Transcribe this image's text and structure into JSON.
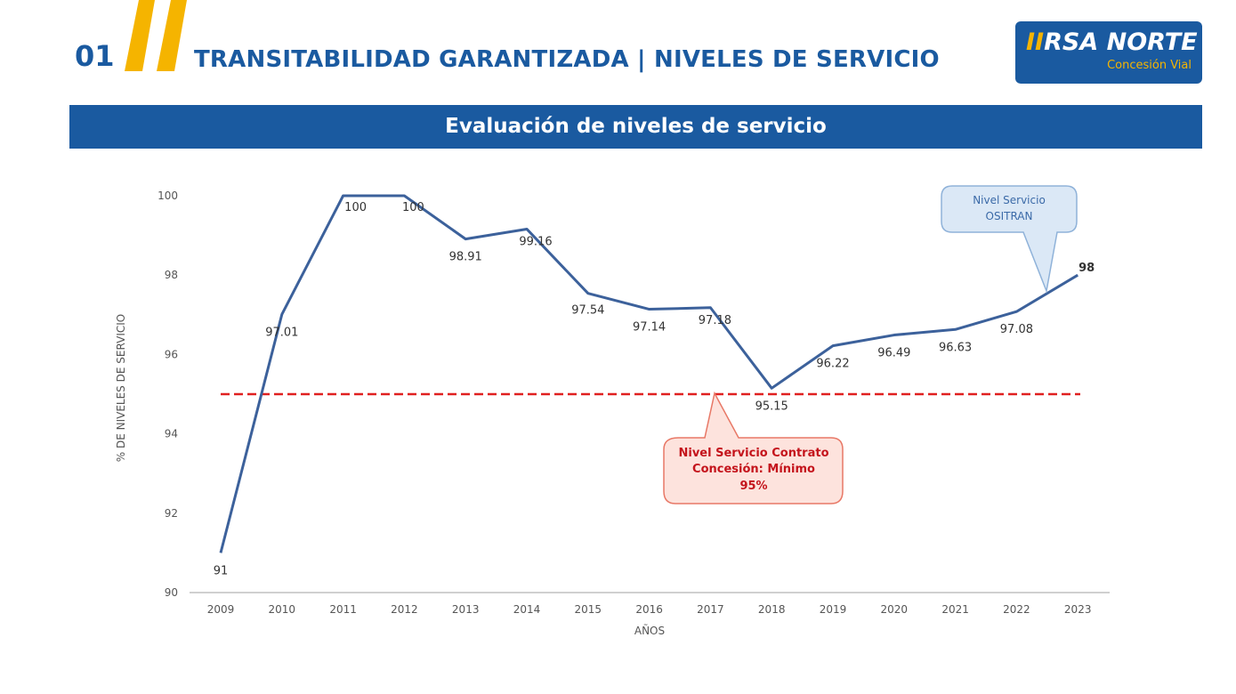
{
  "header": {
    "section_number": "01",
    "title": "TRANSITABILIDAD GARANTIZADA | NIVELES DE SERVICIO",
    "logo_main_prefix": "II",
    "logo_main_rest": "RSA NORTE",
    "logo_sub": "Concesión Vial"
  },
  "banner": {
    "title": "Evaluación de niveles de servicio"
  },
  "colors": {
    "brand_blue": "#1a5aa0",
    "accent_yellow": "#f5b400",
    "line": "#3c619b",
    "threshold": "#e02020"
  },
  "chart_data": {
    "type": "line",
    "xlabel": "AÑOS",
    "ylabel": "% DE NIVELES DE SERVICIO",
    "ylim": [
      90,
      100
    ],
    "yticks": [
      "90",
      "92",
      "94",
      "96",
      "98",
      "100"
    ],
    "categories": [
      "2009",
      "2010",
      "2011",
      "2012",
      "2013",
      "2014",
      "2015",
      "2016",
      "2017",
      "2018",
      "2019",
      "2020",
      "2021",
      "2022",
      "2023"
    ],
    "values": [
      91,
      97.01,
      100,
      100,
      98.91,
      99.16,
      97.54,
      97.14,
      97.18,
      95.15,
      96.22,
      96.49,
      96.63,
      97.08,
      98
    ],
    "value_labels": [
      "91",
      "97.01",
      "100",
      "100",
      "98.91",
      "99.16",
      "97.54",
      "97.14",
      "97.18",
      "95.15",
      "96.22",
      "96.49",
      "96.63",
      "97.08",
      "98"
    ],
    "threshold": {
      "value": 95,
      "style": "dashed"
    },
    "annotations": [
      {
        "id": "contract",
        "lines": [
          "Nivel Servicio Contrato",
          "Concesión: Mínimo",
          "95%"
        ]
      },
      {
        "id": "ositran",
        "lines": [
          "Nivel Servicio",
          "OSITRAN"
        ]
      }
    ]
  }
}
